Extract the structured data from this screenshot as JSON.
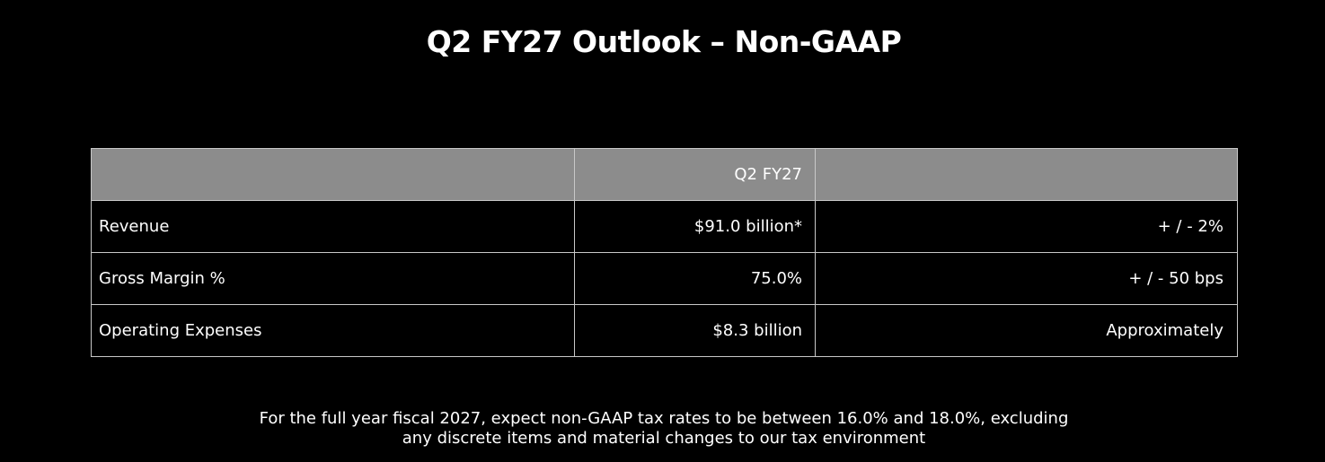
{
  "title": "Q2 FY27 Outlook – Non-GAAP",
  "table": {
    "header": [
      "",
      "Q2 FY27",
      ""
    ],
    "rows": [
      {
        "label": "Revenue",
        "value": "$91.0 billion*",
        "qualifier": "+ / - 2%"
      },
      {
        "label": "Gross Margin %",
        "value": "75.0%",
        "qualifier": "+ / - 50 bps"
      },
      {
        "label": "Operating Expenses",
        "value": "$8.3 billion",
        "qualifier": "Approximately"
      }
    ]
  },
  "footnote": {
    "line1": "For the full year fiscal 2027, expect non-GAAP tax rates to be between 16.0% and 18.0%, excluding",
    "line2": "any discrete items and material changes to our tax environment"
  },
  "colors": {
    "background": "#000000",
    "header_fill": "#8c8c8c",
    "border": "#c8c8c8",
    "text": "#ffffff"
  }
}
